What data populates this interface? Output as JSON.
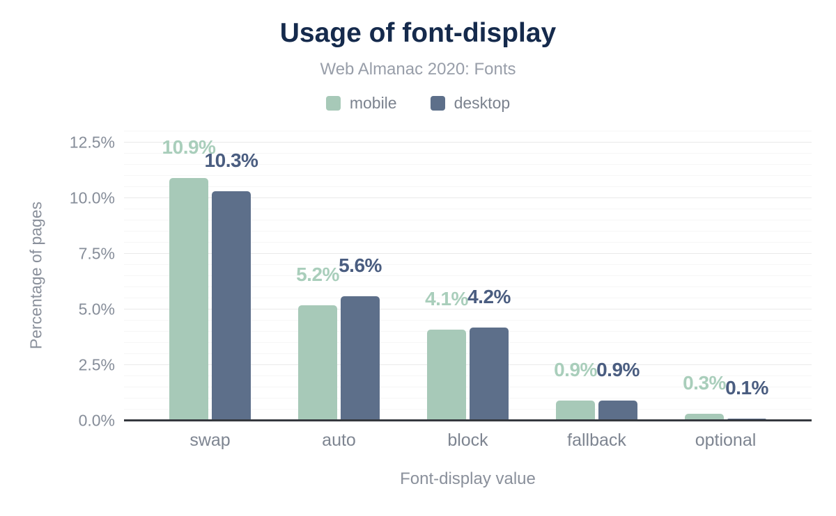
{
  "header": {
    "title": "Usage of font-display",
    "subtitle": "Web Almanac 2020: Fonts"
  },
  "colors": {
    "title": "#152a4c",
    "subtitle": "#989ea9",
    "mobile_bar": "#a7c9b8",
    "mobile_label": "#a9cebb",
    "desktop_bar": "#5d6f8a",
    "desktop_label": "#4a5d80",
    "axis_line": "#35383e",
    "tick_text": "#868d99",
    "category_text": "#7e8591",
    "grid_major": "#e9e9e9",
    "grid_minor": "#f6f6f6"
  },
  "chart_data": {
    "type": "bar",
    "title": "Usage of font-display",
    "subtitle": "Web Almanac 2020: Fonts",
    "categories": [
      "swap",
      "auto",
      "block",
      "fallback",
      "optional"
    ],
    "series": [
      {
        "name": "mobile",
        "color": "#a7c9b8",
        "label_color": "#a9cebb",
        "values": [
          10.9,
          5.2,
          4.1,
          0.9,
          0.3
        ]
      },
      {
        "name": "desktop",
        "color": "#5d6f8a",
        "label_color": "#4a5d80",
        "values": [
          10.3,
          5.6,
          4.2,
          0.9,
          0.1
        ]
      }
    ],
    "data_labels": [
      [
        "10.9%",
        "5.2%",
        "4.1%",
        "0.9%",
        "0.3%"
      ],
      [
        "10.3%",
        "5.6%",
        "4.2%",
        "0.9%",
        "0.1%"
      ]
    ],
    "xlabel": "Font-display value",
    "ylabel": "Percentage of pages",
    "ylim": [
      0,
      13.1
    ],
    "yticks": [
      0,
      2.5,
      5,
      7.5,
      10,
      12.5
    ],
    "ytick_labels": [
      "0.0%",
      "2.5%",
      "5.0%",
      "7.5%",
      "10.0%",
      "12.5%"
    ],
    "grid": "horizontal: major every 2.5%, minor every 0.5%",
    "legend_position": "top"
  }
}
